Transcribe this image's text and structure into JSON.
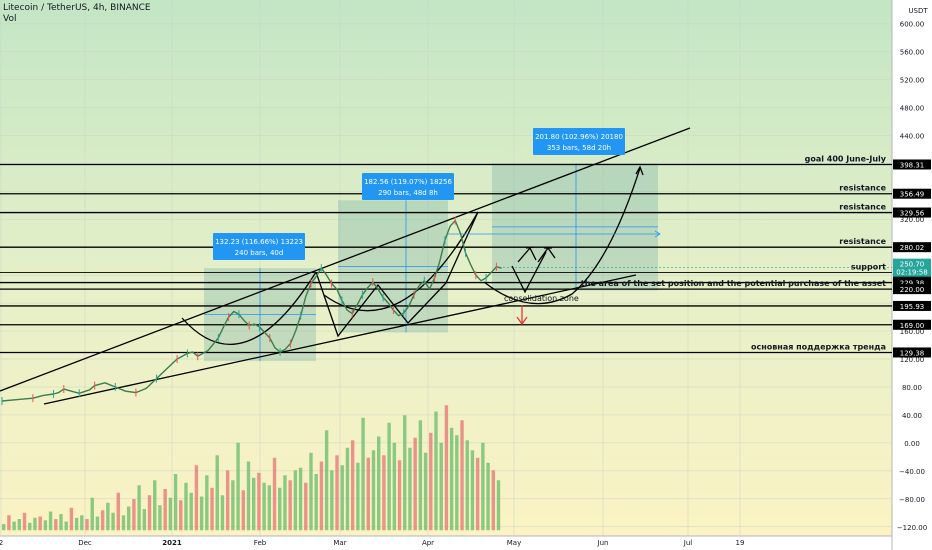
{
  "header": {
    "title": "Litecoin / TetherUS, 4h, BINANCE",
    "vol_label": "Vol"
  },
  "chart_data": {
    "type": "candlestick",
    "currency": "USDT",
    "last_price": "250.70",
    "countdown": "02:19:58",
    "ylim": [
      -130,
      640
    ],
    "y_ticks": [
      "600.00",
      "560.00",
      "520.00",
      "480.00",
      "440.00",
      "400.00",
      "360.00",
      "320.00",
      "280.00",
      "240.00",
      "200.00",
      "160.00",
      "120.00",
      "80.00",
      "40.00",
      "0.00",
      "−40.00",
      "−80.00",
      "−120.00"
    ],
    "x_ticks": [
      "2",
      "Dec",
      "2021",
      "Feb",
      "Mar",
      "Apr",
      "May",
      "Jun",
      "Jul",
      "19"
    ],
    "levels": [
      {
        "price": "398.31",
        "label": "goal 400 June-July"
      },
      {
        "price": "356.49",
        "label": "resistance"
      },
      {
        "price": "329.56",
        "label": "resistance"
      },
      {
        "price": "280.02",
        "label": "resistance"
      },
      {
        "price": "243.67",
        "label": "support"
      },
      {
        "price": "229.38",
        "label": ""
      },
      {
        "price": "220.00",
        "label": "the area of the set position and the potential purchase of the asset"
      },
      {
        "price": "195.93",
        "label": ""
      },
      {
        "price": "169.00",
        "label": ""
      },
      {
        "price": "129.38",
        "label": "основная поддержка тренда"
      }
    ],
    "measurements": [
      {
        "line1": "132.23 (116.66%) 13223",
        "line2": "240 bars, 40d"
      },
      {
        "line1": "182.56 (119.07%) 18256",
        "line2": "290 bars, 48d 8h"
      },
      {
        "line1": "201.80 (102.96%) 20180",
        "line2": "353 bars, 58d 20h"
      }
    ],
    "annotation": "consolidation zone",
    "price_path": [
      [
        0,
        60
      ],
      [
        3,
        62
      ],
      [
        6,
        64
      ],
      [
        8,
        68
      ],
      [
        10,
        70
      ],
      [
        11,
        72
      ],
      [
        12,
        77
      ],
      [
        14,
        73
      ],
      [
        15,
        71
      ],
      [
        17,
        76
      ],
      [
        18,
        82
      ],
      [
        20,
        86
      ],
      [
        22,
        80
      ],
      [
        24,
        74
      ],
      [
        26,
        72
      ],
      [
        28,
        78
      ],
      [
        30,
        92
      ],
      [
        32,
        106
      ],
      [
        34,
        120
      ],
      [
        35,
        124
      ],
      [
        36,
        128
      ],
      [
        37,
        130
      ],
      [
        38,
        124
      ],
      [
        40,
        132
      ],
      [
        42,
        150
      ],
      [
        43,
        166
      ],
      [
        44,
        180
      ],
      [
        45,
        188
      ],
      [
        46,
        184
      ],
      [
        47,
        175
      ],
      [
        48,
        168
      ],
      [
        49,
        170
      ],
      [
        50,
        166
      ],
      [
        51,
        158
      ],
      [
        52,
        150
      ],
      [
        53,
        136
      ],
      [
        54,
        130
      ],
      [
        55,
        134
      ],
      [
        56,
        142
      ],
      [
        57,
        160
      ],
      [
        58,
        182
      ],
      [
        59,
        210
      ],
      [
        60,
        228
      ],
      [
        61,
        238
      ],
      [
        62,
        250
      ],
      [
        63,
        240
      ],
      [
        64,
        228
      ],
      [
        65,
        220
      ],
      [
        66,
        204
      ],
      [
        67,
        190
      ],
      [
        68,
        185
      ],
      [
        69,
        198
      ],
      [
        70,
        212
      ],
      [
        71,
        222
      ],
      [
        72,
        230
      ],
      [
        73,
        220
      ],
      [
        74,
        208
      ],
      [
        75,
        200
      ],
      [
        76,
        190
      ],
      [
        77,
        182
      ],
      [
        78,
        186
      ],
      [
        79,
        196
      ],
      [
        80,
        212
      ],
      [
        81,
        225
      ],
      [
        82,
        232
      ],
      [
        83,
        220
      ],
      [
        84,
        236
      ],
      [
        85,
        260
      ],
      [
        86,
        290
      ],
      [
        87,
        310
      ],
      [
        88,
        318
      ],
      [
        89,
        300
      ],
      [
        90,
        272
      ],
      [
        91,
        255
      ],
      [
        92,
        240
      ],
      [
        93,
        232
      ],
      [
        94,
        236
      ],
      [
        95,
        244
      ],
      [
        96,
        252
      ],
      [
        97,
        250
      ]
    ],
    "volume": [
      5,
      12,
      7,
      9,
      14,
      6,
      10,
      11,
      8,
      15,
      9,
      13,
      7,
      18,
      10,
      12,
      9,
      26,
      11,
      16,
      22,
      14,
      30,
      12,
      19,
      25,
      36,
      17,
      28,
      40,
      20,
      33,
      26,
      45,
      24,
      38,
      30,
      52,
      27,
      44,
      34,
      60,
      28,
      48,
      40,
      70,
      32,
      55,
      42,
      46,
      38,
      36,
      58,
      34,
      44,
      40,
      48,
      50,
      38,
      62,
      45,
      55,
      80,
      48,
      60,
      52,
      66,
      72,
      54,
      90,
      58,
      64,
      75,
      60,
      86,
      70,
      56,
      92,
      66,
      74,
      88,
      62,
      78,
      95,
      70,
      100,
      82,
      76,
      88,
      72,
      64,
      58,
      70,
      54,
      48,
      40
    ],
    "grid": true
  }
}
